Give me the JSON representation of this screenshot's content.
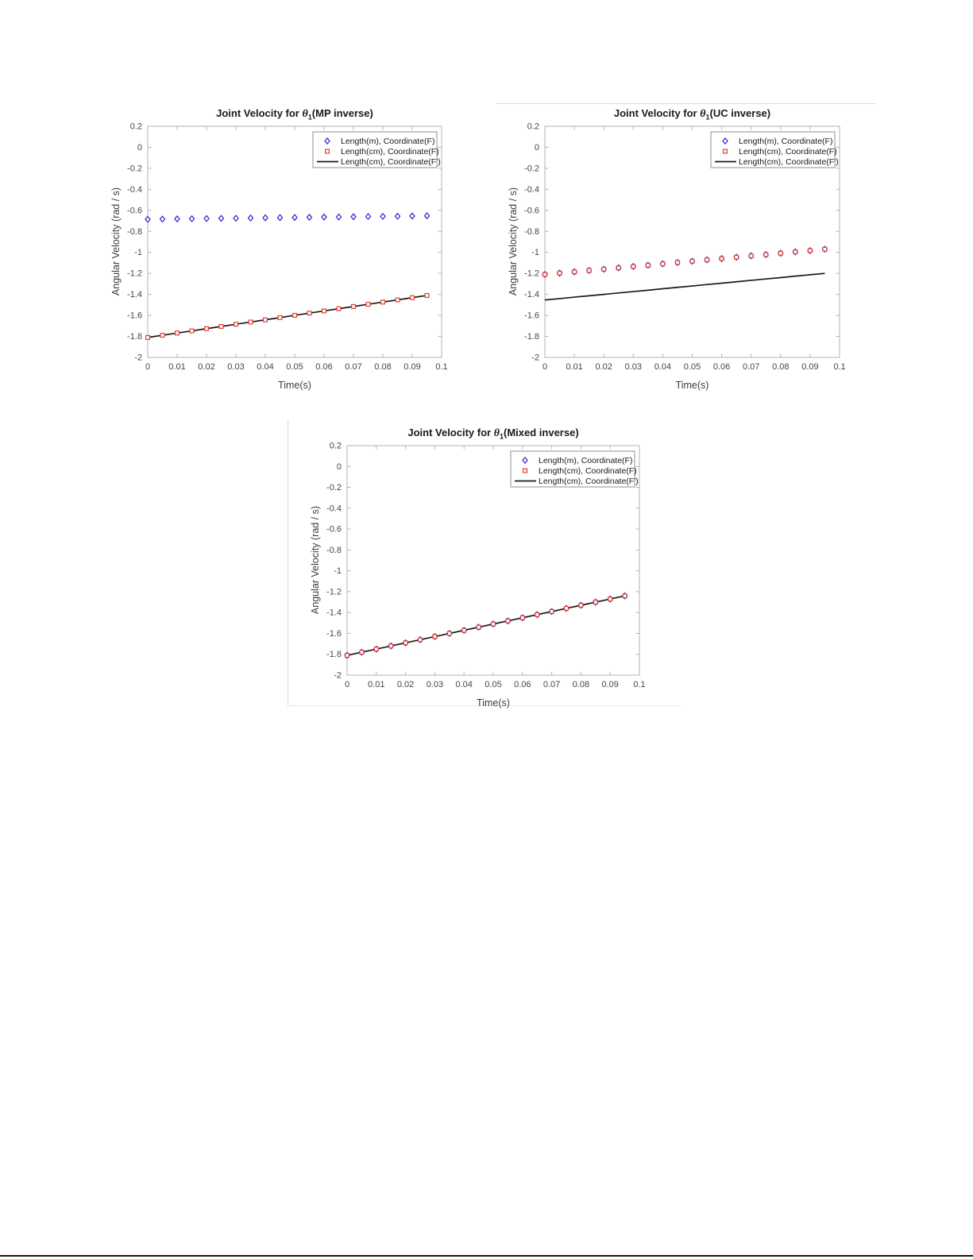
{
  "page": {
    "background": "#ffffff",
    "figure_border_color": "#d9d9d9",
    "bottom_rule_color": "#161616"
  },
  "axis_style": {
    "box_color": "#b3b3b3",
    "tick_label_color": "#454545",
    "label_color": "#3d3d3d",
    "title_color": "#1a1a1a",
    "legend_border_color": "#8f8f8f",
    "legend_text_color": "#1a1a1a"
  },
  "chart_data": [
    {
      "type": "line+scatter",
      "title": {
        "prefix": "Joint Velocity for ",
        "symbol": "θ",
        "subscript": "1",
        "suffix": "(MP inverse)"
      },
      "xlabel": "Time(s)",
      "ylabel": "Angular Velocity (rad / s)",
      "xlim": [
        0,
        0.1
      ],
      "ylim": [
        -2,
        0.2
      ],
      "grid": false,
      "legend_position": "northeast",
      "xticks": {
        "values": [
          0,
          0.01,
          0.02,
          0.03,
          0.04,
          0.05,
          0.06,
          0.07,
          0.08,
          0.09,
          0.1
        ],
        "labels": [
          "0",
          "0.01",
          "0.02",
          "0.03",
          "0.04",
          "0.05",
          "0.06",
          "0.07",
          "0.08",
          "0.09",
          "0.1"
        ]
      },
      "yticks": {
        "values": [
          0.2,
          0,
          -0.2,
          -0.4,
          -0.6,
          -0.8,
          -1,
          -1.2,
          -1.4,
          -1.6,
          -1.8,
          -2
        ],
        "labels": [
          "0.2",
          "0",
          "-0.2",
          "-0.4",
          "-0.6",
          "-0.8",
          "-1",
          "-1.2",
          "-1.4",
          "-1.6",
          "-1.8",
          "-2"
        ]
      },
      "x": [
        0,
        0.005,
        0.01,
        0.015,
        0.02,
        0.025,
        0.03,
        0.035,
        0.04,
        0.045,
        0.05,
        0.055,
        0.06,
        0.065,
        0.07,
        0.075,
        0.08,
        0.085,
        0.09,
        0.095
      ],
      "series": [
        {
          "name": "Length(m), Coordinate(F)",
          "marker": "diamond",
          "color": "#2424d0",
          "line": false,
          "values": [
            -0.685,
            -0.683,
            -0.681,
            -0.68,
            -0.678,
            -0.676,
            -0.675,
            -0.673,
            -0.671,
            -0.669,
            -0.668,
            -0.666,
            -0.664,
            -0.663,
            -0.661,
            -0.659,
            -0.657,
            -0.656,
            -0.654,
            -0.652
          ]
        },
        {
          "name": "Length(cm), Coordinate(F)",
          "marker": "square",
          "color": "#e04030",
          "line": false,
          "values": [
            -1.81,
            -1.789,
            -1.768,
            -1.747,
            -1.726,
            -1.705,
            -1.684,
            -1.663,
            -1.642,
            -1.621,
            -1.599,
            -1.578,
            -1.557,
            -1.536,
            -1.515,
            -1.494,
            -1.473,
            -1.452,
            -1.431,
            -1.41
          ]
        },
        {
          "name": "Length(cm), Coordinate(F')",
          "marker": "none",
          "color": "#1a1a1a",
          "line": true,
          "values": [
            -1.81,
            -1.789,
            -1.768,
            -1.747,
            -1.726,
            -1.705,
            -1.684,
            -1.663,
            -1.642,
            -1.621,
            -1.599,
            -1.578,
            -1.557,
            -1.536,
            -1.515,
            -1.494,
            -1.473,
            -1.452,
            -1.431,
            -1.41
          ]
        }
      ]
    },
    {
      "type": "line+scatter",
      "title": {
        "prefix": "Joint Velocity for ",
        "symbol": "θ",
        "subscript": "1",
        "suffix": "(UC inverse)"
      },
      "xlabel": "Time(s)",
      "ylabel": "Angular Velocity (rad / s)",
      "xlim": [
        0,
        0.1
      ],
      "ylim": [
        -2,
        0.2
      ],
      "grid": false,
      "legend_position": "northeast",
      "xticks": {
        "values": [
          0,
          0.01,
          0.02,
          0.03,
          0.04,
          0.05,
          0.06,
          0.07,
          0.08,
          0.09,
          0.1
        ],
        "labels": [
          "0",
          "0.01",
          "0.02",
          "0.03",
          "0.04",
          "0.05",
          "0.06",
          "0.07",
          "0.08",
          "0.09",
          "0.1"
        ]
      },
      "yticks": {
        "values": [
          0.2,
          0,
          -0.2,
          -0.4,
          -0.6,
          -0.8,
          -1,
          -1.2,
          -1.4,
          -1.6,
          -1.8,
          -2
        ],
        "labels": [
          "0.2",
          "0",
          "-0.2",
          "-0.4",
          "-0.6",
          "-0.8",
          "-1",
          "-1.2",
          "-1.4",
          "-1.6",
          "-1.8",
          "-2"
        ]
      },
      "x": [
        0,
        0.005,
        0.01,
        0.015,
        0.02,
        0.025,
        0.03,
        0.035,
        0.04,
        0.045,
        0.05,
        0.055,
        0.06,
        0.065,
        0.07,
        0.075,
        0.08,
        0.085,
        0.09,
        0.095
      ],
      "series": [
        {
          "name": "Length(m), Coordinate(F)",
          "marker": "diamond",
          "color": "#2424d0",
          "line": false,
          "values": [
            -1.21,
            -1.197,
            -1.185,
            -1.172,
            -1.16,
            -1.147,
            -1.134,
            -1.122,
            -1.109,
            -1.096,
            -1.084,
            -1.071,
            -1.059,
            -1.046,
            -1.033,
            -1.021,
            -1.008,
            -0.995,
            -0.983,
            -0.97
          ]
        },
        {
          "name": "Length(cm), Coordinate(F)",
          "marker": "square",
          "color": "#e04030",
          "line": false,
          "values": [
            -1.21,
            -1.197,
            -1.185,
            -1.172,
            -1.16,
            -1.147,
            -1.134,
            -1.122,
            -1.109,
            -1.096,
            -1.084,
            -1.071,
            -1.059,
            -1.046,
            -1.033,
            -1.021,
            -1.008,
            -0.995,
            -0.983,
            -0.97
          ]
        },
        {
          "name": "Length(cm), Coordinate(F')",
          "marker": "none",
          "color": "#1a1a1a",
          "line": true,
          "values": [
            -1.453,
            -1.44,
            -1.426,
            -1.413,
            -1.4,
            -1.386,
            -1.373,
            -1.36,
            -1.346,
            -1.333,
            -1.32,
            -1.306,
            -1.293,
            -1.28,
            -1.266,
            -1.253,
            -1.24,
            -1.226,
            -1.213,
            -1.2
          ]
        }
      ]
    },
    {
      "type": "line+scatter",
      "title": {
        "prefix": "Joint Velocity for ",
        "symbol": "θ",
        "subscript": "1",
        "suffix": "(Mixed inverse)"
      },
      "xlabel": "Time(s)",
      "ylabel": "Angular Velocity (rad / s)",
      "xlim": [
        0,
        0.1
      ],
      "ylim": [
        -2,
        0.2
      ],
      "grid": false,
      "legend_position": "northeast",
      "xticks": {
        "values": [
          0,
          0.01,
          0.02,
          0.03,
          0.04,
          0.05,
          0.06,
          0.07,
          0.08,
          0.09,
          0.1
        ],
        "labels": [
          "0",
          "0.01",
          "0.02",
          "0.03",
          "0.04",
          "0.05",
          "0.06",
          "0.07",
          "0.08",
          "0.09",
          "0.1"
        ]
      },
      "yticks": {
        "values": [
          0.2,
          0,
          -0.2,
          -0.4,
          -0.6,
          -0.8,
          -1,
          -1.2,
          -1.4,
          -1.6,
          -1.8,
          -2
        ],
        "labels": [
          "0.2",
          "0",
          "-0.2",
          "-0.4",
          "-0.6",
          "-0.8",
          "-1",
          "-1.2",
          "-1.4",
          "-1.6",
          "-1.8",
          "-2"
        ]
      },
      "x": [
        0,
        0.005,
        0.01,
        0.015,
        0.02,
        0.025,
        0.03,
        0.035,
        0.04,
        0.045,
        0.05,
        0.055,
        0.06,
        0.065,
        0.07,
        0.075,
        0.08,
        0.085,
        0.09,
        0.095
      ],
      "series": [
        {
          "name": "Length(m), Coordinate(F)",
          "marker": "diamond",
          "color": "#2424d0",
          "line": false,
          "values": [
            -1.81,
            -1.78,
            -1.75,
            -1.72,
            -1.69,
            -1.66,
            -1.63,
            -1.6,
            -1.57,
            -1.54,
            -1.51,
            -1.48,
            -1.45,
            -1.42,
            -1.39,
            -1.36,
            -1.33,
            -1.3,
            -1.27,
            -1.24
          ]
        },
        {
          "name": "Length(cm), Coordinate(F)",
          "marker": "square",
          "color": "#e04030",
          "line": false,
          "values": [
            -1.81,
            -1.78,
            -1.75,
            -1.72,
            -1.69,
            -1.66,
            -1.63,
            -1.6,
            -1.57,
            -1.54,
            -1.51,
            -1.48,
            -1.45,
            -1.42,
            -1.39,
            -1.36,
            -1.33,
            -1.3,
            -1.27,
            -1.24
          ]
        },
        {
          "name": "Length(cm), Coordinate(F')",
          "marker": "none",
          "color": "#1a1a1a",
          "line": true,
          "values": [
            -1.81,
            -1.78,
            -1.75,
            -1.72,
            -1.69,
            -1.66,
            -1.63,
            -1.6,
            -1.57,
            -1.54,
            -1.51,
            -1.48,
            -1.45,
            -1.42,
            -1.39,
            -1.36,
            -1.33,
            -1.3,
            -1.27,
            -1.24
          ]
        }
      ]
    }
  ]
}
